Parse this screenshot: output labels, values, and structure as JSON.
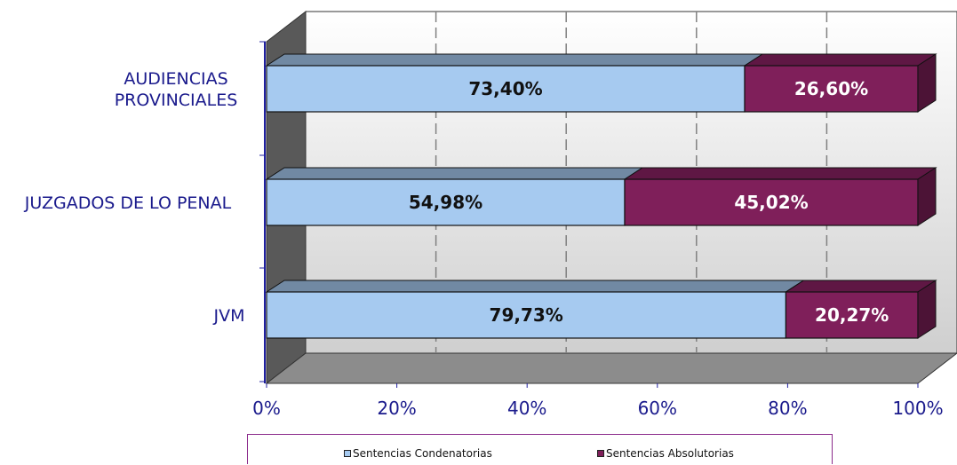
{
  "chart_data": {
    "type": "bar",
    "orientation": "horizontal",
    "stacked": true,
    "three_d": true,
    "categories": [
      "AUDIENCIAS PROVINCIALES",
      "JUZGADOS DE LO PENAL",
      "JVM"
    ],
    "category_label_lines": [
      [
        "AUDIENCIAS",
        "PROVINCIALES"
      ],
      [
        "JUZGADOS DE LO PENAL"
      ],
      [
        "JVM"
      ]
    ],
    "series": [
      {
        "name": "Sentencias Condenatorias",
        "values": [
          73.4,
          54.98,
          79.73
        ],
        "labels": [
          "73,40%",
          "54,98%",
          "79,73%"
        ],
        "color": "#a6caf0"
      },
      {
        "name": "Sentencias Absolutorias",
        "values": [
          26.6,
          45.02,
          20.27
        ],
        "labels": [
          "26,60%",
          "45,02%",
          "20,27%"
        ],
        "color": "#7f1f5a"
      }
    ],
    "xlim": [
      0,
      100
    ],
    "xticks": [
      "0%",
      "20%",
      "40%",
      "60%",
      "80%",
      "100%"
    ],
    "grid": true,
    "legend_position": "bottom"
  }
}
